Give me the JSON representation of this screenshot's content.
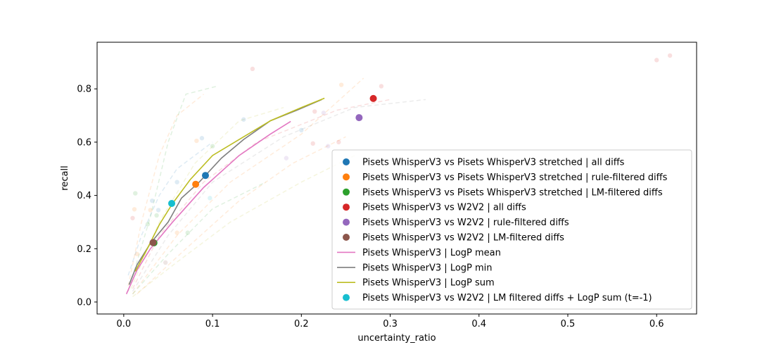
{
  "chart_data": {
    "type": "scatter",
    "title": "",
    "xlabel": "uncertainty_ratio",
    "ylabel": "recall",
    "xlim": [
      -0.03,
      0.645
    ],
    "ylim": [
      -0.045,
      0.975
    ],
    "x_ticks": [
      0.0,
      0.1,
      0.2,
      0.3,
      0.4,
      0.5,
      0.6
    ],
    "x_tick_labels": [
      "0.0",
      "0.1",
      "0.2",
      "0.3",
      "0.4",
      "0.5",
      "0.6"
    ],
    "y_ticks": [
      0.0,
      0.2,
      0.4,
      0.6,
      0.8
    ],
    "y_tick_labels": [
      "0.0",
      "0.2",
      "0.4",
      "0.6",
      "0.8"
    ],
    "grid": false,
    "legend_position": "lower-right",
    "background_curves": [
      {
        "color": "#2ca02c",
        "points": [
          [
            0.005,
            0.04
          ],
          [
            0.03,
            0.32
          ],
          [
            0.05,
            0.6
          ],
          [
            0.07,
            0.78
          ],
          [
            0.105,
            0.81
          ]
        ]
      },
      {
        "color": "#ff7f0e",
        "points": [
          [
            0.005,
            0.06
          ],
          [
            0.02,
            0.3
          ],
          [
            0.04,
            0.55
          ],
          [
            0.06,
            0.7
          ],
          [
            0.09,
            0.78
          ]
        ]
      },
      {
        "color": "#bcbd22",
        "points": [
          [
            0.008,
            0.05
          ],
          [
            0.04,
            0.3
          ],
          [
            0.08,
            0.52
          ],
          [
            0.13,
            0.68
          ],
          [
            0.18,
            0.73
          ]
        ]
      },
      {
        "color": "#7f7f7f",
        "points": [
          [
            0.01,
            0.04
          ],
          [
            0.05,
            0.25
          ],
          [
            0.1,
            0.45
          ],
          [
            0.18,
            0.62
          ],
          [
            0.26,
            0.73
          ],
          [
            0.34,
            0.76
          ]
        ]
      },
      {
        "color": "#ff7f0e",
        "points": [
          [
            0.01,
            0.03
          ],
          [
            0.06,
            0.25
          ],
          [
            0.12,
            0.45
          ],
          [
            0.2,
            0.63
          ],
          [
            0.27,
            0.84
          ]
        ]
      },
      {
        "color": "#2ca02c",
        "points": [
          [
            0.01,
            0.03
          ],
          [
            0.05,
            0.18
          ],
          [
            0.1,
            0.35
          ],
          [
            0.16,
            0.45
          ]
        ]
      },
      {
        "color": "#ff7f0e",
        "points": [
          [
            0.015,
            0.03
          ],
          [
            0.07,
            0.2
          ],
          [
            0.13,
            0.38
          ],
          [
            0.19,
            0.52
          ],
          [
            0.25,
            0.62
          ]
        ]
      },
      {
        "color": "#1f77b4",
        "points": [
          [
            0.005,
            0.1
          ],
          [
            0.02,
            0.25
          ],
          [
            0.04,
            0.4
          ],
          [
            0.06,
            0.5
          ],
          [
            0.1,
            0.6
          ]
        ]
      },
      {
        "color": "#d62728",
        "points": [
          [
            0.01,
            0.05
          ],
          [
            0.04,
            0.25
          ],
          [
            0.09,
            0.45
          ],
          [
            0.15,
            0.6
          ],
          [
            0.24,
            0.72
          ],
          [
            0.3,
            0.76
          ]
        ]
      },
      {
        "color": "#bcbd22",
        "points": [
          [
            0.01,
            0.02
          ],
          [
            0.06,
            0.15
          ],
          [
            0.12,
            0.3
          ],
          [
            0.2,
            0.45
          ],
          [
            0.26,
            0.55
          ]
        ]
      }
    ],
    "background_points": [
      {
        "color": "#d62728",
        "x": 0.145,
        "y": 0.875
      },
      {
        "color": "#d62728",
        "x": 0.6,
        "y": 0.908
      },
      {
        "color": "#d62728",
        "x": 0.615,
        "y": 0.925
      },
      {
        "color": "#d62728",
        "x": 0.29,
        "y": 0.81
      },
      {
        "color": "#ff7f0e",
        "x": 0.245,
        "y": 0.815
      },
      {
        "color": "#1f77b4",
        "x": 0.135,
        "y": 0.685
      },
      {
        "color": "#9467bd",
        "x": 0.225,
        "y": 0.71
      },
      {
        "color": "#d62728",
        "x": 0.215,
        "y": 0.715
      },
      {
        "color": "#2ca02c",
        "x": 0.1,
        "y": 0.585
      },
      {
        "color": "#ff7f0e",
        "x": 0.082,
        "y": 0.605
      },
      {
        "color": "#1f77b4",
        "x": 0.088,
        "y": 0.615
      },
      {
        "color": "#d62728",
        "x": 0.213,
        "y": 0.595
      },
      {
        "color": "#d62728",
        "x": 0.242,
        "y": 0.6
      },
      {
        "color": "#9467bd",
        "x": 0.23,
        "y": 0.585
      },
      {
        "color": "#9467bd",
        "x": 0.183,
        "y": 0.54
      },
      {
        "color": "#1f77b4",
        "x": 0.06,
        "y": 0.45
      },
      {
        "color": "#ff7f0e",
        "x": 0.03,
        "y": 0.345
      },
      {
        "color": "#1f77b4",
        "x": 0.032,
        "y": 0.38
      },
      {
        "color": "#2ca02c",
        "x": 0.013,
        "y": 0.408
      },
      {
        "color": "#ff7f0e",
        "x": 0.012,
        "y": 0.348
      },
      {
        "color": "#d62728",
        "x": 0.01,
        "y": 0.315
      },
      {
        "color": "#2ca02c",
        "x": 0.027,
        "y": 0.292
      },
      {
        "color": "#1f77b4",
        "x": 0.039,
        "y": 0.345
      },
      {
        "color": "#2ca02c",
        "x": 0.037,
        "y": 0.325
      },
      {
        "color": "#2ca02c",
        "x": 0.072,
        "y": 0.26
      },
      {
        "color": "#8c564b",
        "x": 0.047,
        "y": 0.148
      },
      {
        "color": "#ff7f0e",
        "x": 0.015,
        "y": 0.18
      },
      {
        "color": "#17becf",
        "x": 0.097,
        "y": 0.39
      },
      {
        "color": "#ff7f0e",
        "x": 0.06,
        "y": 0.26
      },
      {
        "color": "#1f77b4",
        "x": 0.2,
        "y": 0.645
      }
    ],
    "series": [
      {
        "name": "Pisets WhisperV3 vs Pisets WhisperV3 stretched | all diffs",
        "type": "point",
        "color": "#1f77b4",
        "x": 0.092,
        "y": 0.475
      },
      {
        "name": "Pisets WhisperV3 vs Pisets WhisperV3 stretched | rule-filtered diffs",
        "type": "point",
        "color": "#ff7f0e",
        "x": 0.081,
        "y": 0.442
      },
      {
        "name": "Pisets WhisperV3 vs Pisets WhisperV3 stretched | LM-filtered diffs",
        "type": "point",
        "color": "#2ca02c",
        "x": 0.034,
        "y": 0.222
      },
      {
        "name": "Pisets WhisperV3 vs W2V2 | all diffs",
        "type": "point",
        "color": "#d62728",
        "x": 0.281,
        "y": 0.764
      },
      {
        "name": "Pisets WhisperV3 vs W2V2 | rule-filtered diffs",
        "type": "point",
        "color": "#9467bd",
        "x": 0.265,
        "y": 0.692
      },
      {
        "name": "Pisets WhisperV3 vs W2V2 | LM-filtered diffs",
        "type": "point",
        "color": "#8c564b",
        "x": 0.033,
        "y": 0.223
      },
      {
        "name": "Pisets WhisperV3 | LogP mean",
        "type": "line",
        "color": "#e377c2",
        "x": [
          0.003,
          0.015,
          0.03,
          0.055,
          0.09,
          0.13,
          0.165,
          0.188
        ],
        "y": [
          0.03,
          0.12,
          0.2,
          0.3,
          0.43,
          0.55,
          0.63,
          0.678
        ]
      },
      {
        "name": "Pisets WhisperV3 | LogP min",
        "type": "line",
        "color": "#7f7f7f",
        "x": [
          0.006,
          0.015,
          0.03,
          0.05,
          0.065,
          0.085,
          0.11,
          0.135,
          0.165,
          0.195,
          0.223
        ],
        "y": [
          0.065,
          0.14,
          0.22,
          0.3,
          0.39,
          0.45,
          0.54,
          0.61,
          0.68,
          0.72,
          0.76
        ]
      },
      {
        "name": "Pisets WhisperV3 | LogP sum",
        "type": "line",
        "color": "#bcbd22",
        "x": [
          0.013,
          0.025,
          0.04,
          0.055,
          0.075,
          0.1,
          0.135,
          0.165,
          0.2,
          0.226
        ],
        "y": [
          0.115,
          0.19,
          0.29,
          0.37,
          0.46,
          0.55,
          0.62,
          0.68,
          0.73,
          0.765
        ]
      },
      {
        "name": "Pisets WhisperV3 vs W2V2 | LM filtered diffs + LogP sum (t=-1)",
        "type": "point",
        "color": "#17becf",
        "x": 0.054,
        "y": 0.37
      }
    ]
  }
}
